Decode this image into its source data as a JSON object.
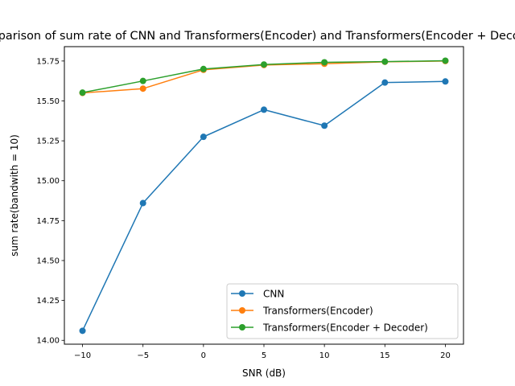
{
  "chart_data": {
    "type": "line",
    "title": "Comparison of sum rate of CNN and Transformers(Encoder) and Transformers(Encoder + Decoder)",
    "xlabel": "SNR (dB)",
    "ylabel": "sum rate(bandwith = 10)",
    "x": [
      -10,
      -5,
      0,
      5,
      10,
      15,
      20
    ],
    "xticks": [
      "−10",
      "−5",
      "0",
      "5",
      "10",
      "15",
      "20"
    ],
    "yticks": [
      "14.00",
      "14.25",
      "14.50",
      "14.75",
      "15.00",
      "15.25",
      "15.50",
      "15.75"
    ],
    "xlim": [
      -11.5,
      21.5
    ],
    "ylim": [
      13.976,
      15.84
    ],
    "grid": false,
    "legend_position": "lower-right",
    "series": [
      {
        "name": "CNN",
        "color": "#1f77b4",
        "values": [
          14.06,
          14.86,
          15.275,
          15.445,
          15.345,
          15.615,
          15.622
        ]
      },
      {
        "name": "Transformers(Encoder)",
        "color": "#ff7f0e",
        "values": [
          15.55,
          15.577,
          15.695,
          15.725,
          15.733,
          15.745,
          15.75
        ]
      },
      {
        "name": "Transformers(Encoder + Decoder)",
        "color": "#2ca02c",
        "values": [
          15.552,
          15.625,
          15.7,
          15.728,
          15.742,
          15.746,
          15.752
        ]
      }
    ]
  }
}
